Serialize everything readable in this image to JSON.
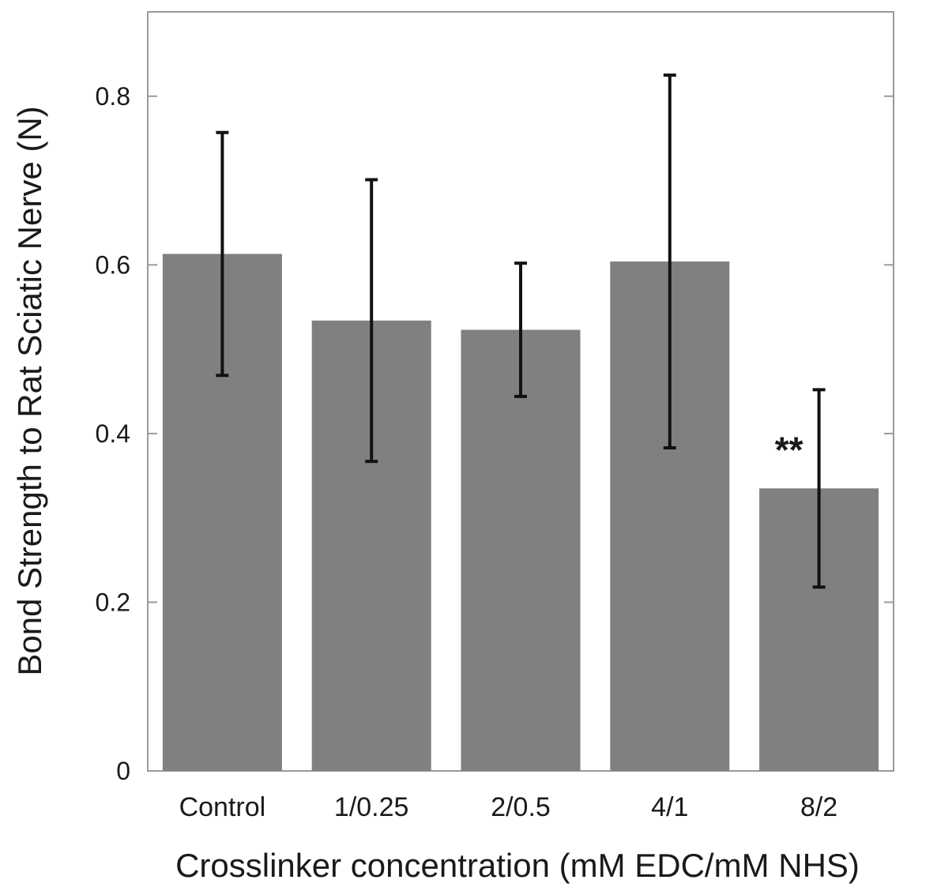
{
  "chart_data": {
    "type": "bar",
    "title": "",
    "xlabel": "Crosslinker concentration (mM EDC/mM NHS)",
    "ylabel": "Bond Strength to Rat Sciatic Nerve (N)",
    "categories": [
      "Control",
      "1/0.25",
      "2/0.5",
      "4/1",
      "8/2"
    ],
    "values": [
      0.613,
      0.534,
      0.523,
      0.604,
      0.335
    ],
    "error_low": [
      0.469,
      0.367,
      0.444,
      0.383,
      0.218
    ],
    "error_high": [
      0.757,
      0.701,
      0.602,
      0.825,
      0.452
    ],
    "annotations": [
      {
        "category": "8/2",
        "text": "**"
      }
    ],
    "ylim": [
      0,
      0.9
    ],
    "yticks": [
      0,
      0.2,
      0.4,
      0.6,
      0.8
    ],
    "ytick_labels": [
      "0",
      "0.2",
      "0.4",
      "0.6",
      "0.8"
    ],
    "grid": false,
    "bar_color": "#808080",
    "error_color": "#111111"
  }
}
